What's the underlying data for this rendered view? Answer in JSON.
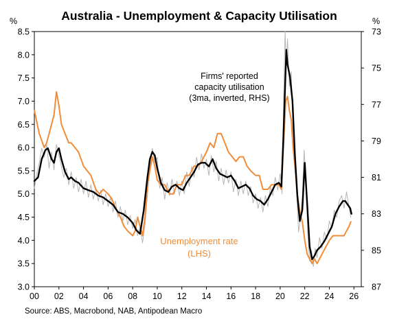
{
  "chart_data": {
    "type": "line",
    "title": "Australia - Unemployment & Capacity Utilisation",
    "source": "Source: ABS, Macrobond, NAB, Antipodean Macro",
    "left_axis": {
      "unit_label": "%",
      "ylim": [
        3.0,
        8.5
      ],
      "ticks": [
        "8.5",
        "8.0",
        "7.5",
        "7.0",
        "6.5",
        "6.0",
        "5.5",
        "5.0",
        "4.5",
        "4.0",
        "3.5",
        "3.0"
      ],
      "tick_values": [
        8.5,
        8.0,
        7.5,
        7.0,
        6.5,
        6.0,
        5.5,
        5.0,
        4.5,
        4.0,
        3.5,
        3.0
      ]
    },
    "right_axis": {
      "unit_label": "%",
      "inverted": true,
      "ylim": [
        73,
        87
      ],
      "ticks": [
        "73",
        "75",
        "77",
        "79",
        "81",
        "83",
        "85",
        "87"
      ],
      "tick_values": [
        73,
        75,
        77,
        79,
        81,
        83,
        85,
        87
      ]
    },
    "x_axis": {
      "xlim": [
        2000,
        2026.6
      ],
      "ticks": [
        "00",
        "02",
        "04",
        "06",
        "08",
        "10",
        "12",
        "14",
        "16",
        "18",
        "20",
        "22",
        "24",
        "26"
      ],
      "tick_values": [
        2000,
        2002,
        2004,
        2006,
        2008,
        2010,
        2012,
        2014,
        2016,
        2018,
        2020,
        2022,
        2024,
        2026
      ]
    },
    "annotations": {
      "capacity": [
        "Firms' reported",
        "capacity utilisation",
        "(3ma, inverted, RHS)"
      ],
      "unemployment": [
        "Unemployment rate",
        "(LHS)"
      ]
    },
    "series": [
      {
        "name": "Unemployment rate",
        "axis": "left",
        "color": "#f28c38",
        "x": [
          2000.0,
          2000.4,
          2000.8,
          2001.0,
          2001.3,
          2001.6,
          2001.8,
          2002.0,
          2002.2,
          2002.5,
          2002.8,
          2003.0,
          2003.3,
          2003.6,
          2004.0,
          2004.3,
          2004.6,
          2005.0,
          2005.3,
          2005.6,
          2006.0,
          2006.3,
          2006.6,
          2007.0,
          2007.3,
          2007.6,
          2008.0,
          2008.2,
          2008.4,
          2008.6,
          2008.8,
          2009.0,
          2009.2,
          2009.4,
          2009.6,
          2009.8,
          2010.0,
          2010.3,
          2010.6,
          2011.0,
          2011.3,
          2011.6,
          2012.0,
          2012.3,
          2012.6,
          2013.0,
          2013.3,
          2013.6,
          2014.0,
          2014.3,
          2014.6,
          2014.9,
          2015.2,
          2015.5,
          2015.8,
          2016.1,
          2016.4,
          2016.7,
          2017.0,
          2017.3,
          2017.6,
          2018.0,
          2018.3,
          2018.6,
          2019.0,
          2019.3,
          2019.6,
          2019.9,
          2020.1,
          2020.3,
          2020.45,
          2020.6,
          2020.75,
          2020.9,
          2021.05,
          2021.2,
          2021.4,
          2021.6,
          2021.8,
          2022.0,
          2022.2,
          2022.4,
          2022.6,
          2022.8,
          2023.0,
          2023.2,
          2023.4,
          2023.6,
          2023.8,
          2024.0,
          2024.3,
          2024.6,
          2024.9,
          2025.2,
          2025.4,
          2025.6,
          2025.75
        ],
        "values": [
          6.8,
          6.3,
          6.0,
          6.1,
          6.4,
          6.7,
          7.2,
          6.9,
          6.5,
          6.3,
          6.1,
          6.1,
          6.0,
          5.9,
          5.6,
          5.5,
          5.4,
          5.1,
          5.0,
          5.1,
          5.0,
          4.9,
          4.7,
          4.5,
          4.3,
          4.2,
          4.1,
          4.2,
          4.5,
          4.3,
          4.1,
          4.5,
          5.2,
          5.5,
          5.8,
          5.6,
          5.3,
          5.2,
          5.2,
          5.0,
          5.0,
          5.2,
          5.2,
          5.4,
          5.4,
          5.6,
          5.6,
          5.7,
          5.9,
          6.1,
          6.0,
          6.3,
          6.3,
          6.1,
          5.9,
          5.8,
          5.7,
          5.8,
          5.8,
          5.6,
          5.5,
          5.4,
          5.4,
          5.1,
          5.1,
          5.2,
          5.2,
          5.2,
          5.1,
          6.2,
          7.0,
          7.1,
          6.8,
          6.6,
          6.0,
          5.6,
          5.0,
          4.6,
          4.4,
          4.0,
          3.7,
          3.6,
          3.5,
          3.6,
          3.5,
          3.6,
          3.7,
          3.8,
          3.9,
          4.0,
          4.1,
          4.1,
          4.1,
          4.1,
          4.2,
          4.3,
          4.4
        ]
      },
      {
        "name": "Firms' reported capacity utilisation (3ma, inverted, RHS)",
        "axis": "right",
        "color": "#000000",
        "x": [
          2000.0,
          2000.3,
          2000.6,
          2000.9,
          2001.1,
          2001.4,
          2001.6,
          2001.8,
          2002.0,
          2002.2,
          2002.5,
          2002.8,
          2003.0,
          2003.3,
          2003.6,
          2004.0,
          2004.4,
          2004.8,
          2005.2,
          2005.6,
          2006.0,
          2006.4,
          2006.8,
          2007.2,
          2007.6,
          2008.0,
          2008.3,
          2008.6,
          2008.9,
          2009.2,
          2009.4,
          2009.6,
          2009.8,
          2010.0,
          2010.3,
          2010.6,
          2010.9,
          2011.2,
          2011.5,
          2011.8,
          2012.1,
          2012.4,
          2012.7,
          2013.0,
          2013.3,
          2013.6,
          2013.9,
          2014.2,
          2014.5,
          2014.8,
          2015.1,
          2015.4,
          2015.7,
          2016.0,
          2016.3,
          2016.6,
          2016.9,
          2017.2,
          2017.5,
          2017.8,
          2018.1,
          2018.4,
          2018.7,
          2019.0,
          2019.3,
          2019.6,
          2019.9,
          2020.1,
          2020.25,
          2020.4,
          2020.5,
          2020.6,
          2020.8,
          2021.0,
          2021.2,
          2021.4,
          2021.6,
          2021.8,
          2022.0,
          2022.2,
          2022.4,
          2022.6,
          2022.8,
          2023.0,
          2023.3,
          2023.6,
          2023.9,
          2024.2,
          2024.5,
          2024.8,
          2025.1,
          2025.3,
          2025.5,
          2025.7,
          2025.8
        ],
        "values": [
          81.2,
          81.0,
          80.0,
          79.5,
          79.4,
          80.0,
          80.2,
          79.6,
          79.4,
          80.0,
          80.7,
          81.1,
          81.0,
          81.2,
          81.3,
          81.6,
          81.7,
          81.8,
          82.0,
          82.1,
          82.3,
          82.5,
          82.9,
          83.0,
          83.2,
          83.5,
          83.9,
          84.1,
          82.8,
          81.0,
          80.0,
          79.6,
          79.8,
          80.5,
          81.3,
          81.7,
          81.8,
          81.5,
          81.4,
          81.6,
          81.7,
          81.3,
          81.0,
          80.7,
          80.3,
          80.2,
          80.2,
          80.4,
          80.0,
          80.5,
          80.8,
          80.9,
          81.0,
          80.9,
          81.2,
          81.6,
          81.5,
          81.4,
          81.6,
          82.0,
          82.2,
          82.3,
          82.5,
          82.2,
          81.8,
          81.4,
          81.3,
          81.5,
          79.0,
          76.0,
          74.0,
          74.8,
          75.5,
          76.8,
          79.8,
          82.0,
          83.4,
          82.8,
          80.2,
          82.5,
          84.8,
          85.5,
          85.3,
          85.0,
          84.8,
          84.5,
          84.1,
          83.7,
          83.0,
          82.6,
          82.3,
          82.3,
          82.5,
          82.7,
          83.0
        ]
      },
      {
        "name": "Capacity utilisation (monthly)",
        "axis": "right",
        "color": "#b5b5b5",
        "x": [
          2000.0,
          2000.2,
          2000.4,
          2000.6,
          2000.8,
          2001.0,
          2001.2,
          2001.4,
          2001.6,
          2001.8,
          2002.0,
          2002.2,
          2002.4,
          2002.6,
          2002.8,
          2003.0,
          2003.2,
          2003.4,
          2003.6,
          2003.8,
          2004.0,
          2004.2,
          2004.4,
          2004.6,
          2004.8,
          2005.0,
          2005.2,
          2005.4,
          2005.6,
          2005.8,
          2006.0,
          2006.2,
          2006.4,
          2006.6,
          2006.8,
          2007.0,
          2007.2,
          2007.4,
          2007.6,
          2007.8,
          2008.0,
          2008.2,
          2008.4,
          2008.6,
          2008.8,
          2009.0,
          2009.2,
          2009.4,
          2009.6,
          2009.8,
          2010.0,
          2010.2,
          2010.4,
          2010.6,
          2010.8,
          2011.0,
          2011.2,
          2011.4,
          2011.6,
          2011.8,
          2012.0,
          2012.2,
          2012.4,
          2012.6,
          2012.8,
          2013.0,
          2013.2,
          2013.4,
          2013.6,
          2013.8,
          2014.0,
          2014.2,
          2014.4,
          2014.6,
          2014.8,
          2015.0,
          2015.2,
          2015.4,
          2015.6,
          2015.8,
          2016.0,
          2016.2,
          2016.4,
          2016.6,
          2016.8,
          2017.0,
          2017.2,
          2017.4,
          2017.6,
          2017.8,
          2018.0,
          2018.2,
          2018.4,
          2018.6,
          2018.8,
          2019.0,
          2019.2,
          2019.4,
          2019.6,
          2019.8,
          2020.0,
          2020.15,
          2020.3,
          2020.4,
          2020.5,
          2020.6,
          2020.75,
          2020.9,
          2021.05,
          2021.2,
          2021.35,
          2021.5,
          2021.65,
          2021.8,
          2021.95,
          2022.1,
          2022.25,
          2022.4,
          2022.55,
          2022.7,
          2022.85,
          2023.0,
          2023.2,
          2023.4,
          2023.6,
          2023.8,
          2024.0,
          2024.2,
          2024.4,
          2024.6,
          2024.8,
          2025.0,
          2025.2,
          2025.4,
          2025.6,
          2025.75
        ],
        "values": [
          81.6,
          80.8,
          80.2,
          79.4,
          79.9,
          79.2,
          80.5,
          79.6,
          80.6,
          79.2,
          79.8,
          80.4,
          81.0,
          80.5,
          81.4,
          80.7,
          81.6,
          81.0,
          81.8,
          81.1,
          81.9,
          81.2,
          82.1,
          81.4,
          82.2,
          81.6,
          82.3,
          81.7,
          82.5,
          81.9,
          82.6,
          82.1,
          82.9,
          82.3,
          83.2,
          82.6,
          83.4,
          82.8,
          83.6,
          83.1,
          83.8,
          83.3,
          84.2,
          83.7,
          84.6,
          83.6,
          82.0,
          80.4,
          79.4,
          80.2,
          79.9,
          81.6,
          81.0,
          82.2,
          81.3,
          82.0,
          81.1,
          81.9,
          81.2,
          82.0,
          81.2,
          81.9,
          80.7,
          81.5,
          80.4,
          81.0,
          79.9,
          80.6,
          79.7,
          80.5,
          80.0,
          80.9,
          79.8,
          80.7,
          80.1,
          81.2,
          80.5,
          81.4,
          80.6,
          81.3,
          80.7,
          81.8,
          81.1,
          82.0,
          81.2,
          81.9,
          81.2,
          82.0,
          81.5,
          82.4,
          81.9,
          82.7,
          82.1,
          82.9,
          82.0,
          82.6,
          81.5,
          82.0,
          81.0,
          81.7,
          80.8,
          81.9,
          76.0,
          73.0,
          75.0,
          73.4,
          76.0,
          75.2,
          78.5,
          80.5,
          82.0,
          84.0,
          83.2,
          82.1,
          79.5,
          81.2,
          84.2,
          85.6,
          85.0,
          85.9,
          84.9,
          85.4,
          84.3,
          84.9,
          84.0,
          84.4,
          83.4,
          83.8,
          82.8,
          83.2,
          82.3,
          82.0,
          82.7,
          81.8,
          82.6,
          83.2
        ]
      }
    ]
  }
}
